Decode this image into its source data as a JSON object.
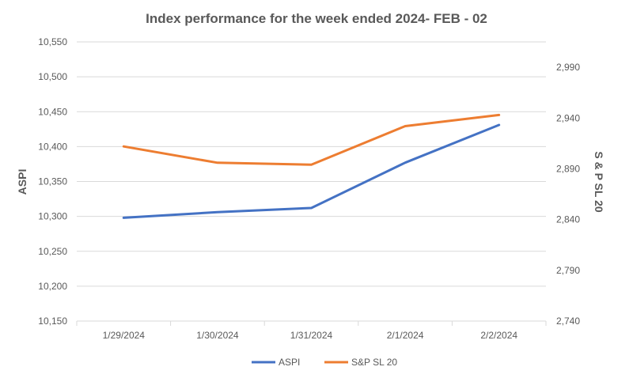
{
  "chart_data": {
    "type": "line",
    "title": "Index performance for the week ended 2024-  FEB - 02",
    "categories": [
      "1/29/2024",
      "1/30/2024",
      "1/31/2024",
      "2/1/2024",
      "2/2/2024"
    ],
    "ylabel": "ASPI",
    "y2label": "S & P SL 20",
    "ylim": [
      10150,
      10550
    ],
    "y2lim": [
      2740,
      3015
    ],
    "yticks": [
      "10,150",
      "10,200",
      "10,250",
      "10,300",
      "10,350",
      "10,400",
      "10,450",
      "10,500",
      "10,550"
    ],
    "y2ticks": [
      "2,740",
      "2,790",
      "2,840",
      "2,890",
      "2,940",
      "2,990"
    ],
    "grid": true,
    "legend_position": "bottom",
    "series": [
      {
        "name": "ASPI",
        "axis": "left",
        "color": "#4472c4",
        "values": [
          10298,
          10306,
          10312,
          10377,
          10431
        ]
      },
      {
        "name": "S&P SL 20",
        "axis": "right",
        "color": "#ed7d31",
        "values": [
          2912,
          2896,
          2894,
          2932,
          2943
        ]
      }
    ]
  }
}
